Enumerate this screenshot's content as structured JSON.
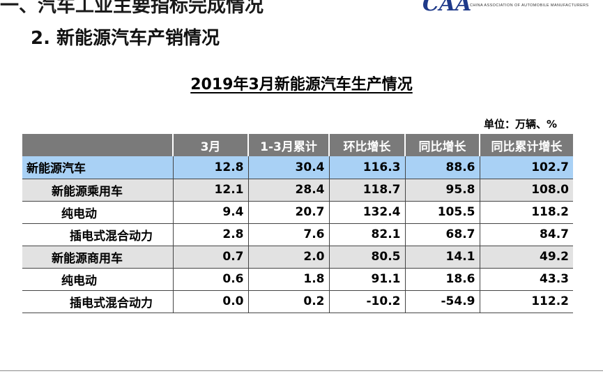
{
  "top_header": "一、汽车工业主要指标完成情况",
  "logo": {
    "mark": "CAA",
    "subtitle": "CHINA ASSOCIATION OF AUTOMOBILE MANUFACTURERS"
  },
  "section_title": "2. 新能源汽车产销情况",
  "table_title": "2019年3月新能源汽车生产情况",
  "unit": "单位：万辆、%",
  "table": {
    "headers": [
      "",
      "3月",
      "1-3月累计",
      "环比增长",
      "同比增长",
      "同比累计增长"
    ],
    "rows": [
      [
        "新能源汽车",
        "12.8",
        "30.4",
        "116.3",
        "88.6",
        "102.7"
      ],
      [
        "新能源乘用车",
        "12.1",
        "28.4",
        "118.7",
        "95.8",
        "108.0"
      ],
      [
        "纯电动",
        "9.4",
        "20.7",
        "132.4",
        "105.5",
        "118.2"
      ],
      [
        "插电式混合动力",
        "2.8",
        "7.6",
        "82.1",
        "68.7",
        "84.7"
      ],
      [
        "新能源商用车",
        "0.7",
        "2.0",
        "80.5",
        "14.1",
        "49.2"
      ],
      [
        "纯电动",
        "0.6",
        "1.8",
        "91.1",
        "18.6",
        "43.3"
      ],
      [
        "插电式混合动力",
        "0.0",
        "0.2",
        "-10.2",
        "-54.9",
        "112.2"
      ]
    ]
  }
}
